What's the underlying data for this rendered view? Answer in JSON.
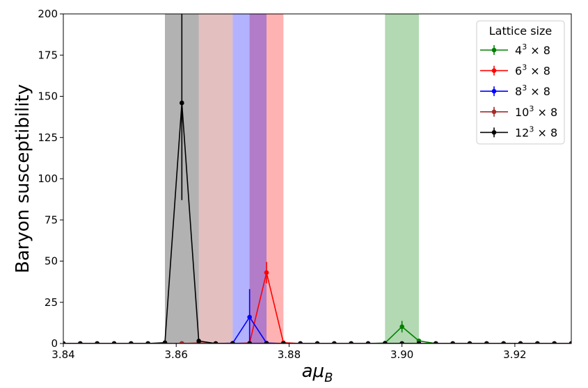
{
  "chart_data": {
    "type": "line",
    "title": "",
    "xlabel": "aμ_B",
    "ylabel": "Baryon susceptibility",
    "xlim": [
      3.84,
      3.93
    ],
    "ylim": [
      0,
      200
    ],
    "x_ticks": [
      3.84,
      3.86,
      3.88,
      3.9,
      3.92
    ],
    "x_tick_labels": [
      "3.84",
      "3.86",
      "3.88",
      "3.90",
      "3.92"
    ],
    "y_ticks": [
      0,
      25,
      50,
      75,
      100,
      125,
      150,
      175,
      200
    ],
    "y_tick_labels": [
      "0",
      "25",
      "50",
      "75",
      "100",
      "125",
      "150",
      "175",
      "200"
    ],
    "grid": false,
    "legend": {
      "title": "Lattice size",
      "placement": "top-right"
    },
    "x": [
      3.84,
      3.843,
      3.846,
      3.849,
      3.852,
      3.855,
      3.858,
      3.861,
      3.864,
      3.867,
      3.87,
      3.873,
      3.876,
      3.879,
      3.882,
      3.885,
      3.888,
      3.891,
      3.894,
      3.897,
      3.9,
      3.903,
      3.906,
      3.909,
      3.912,
      3.915,
      3.918,
      3.921,
      3.924,
      3.927,
      3.93
    ],
    "series": [
      {
        "name": "4³ × 8",
        "base": "4",
        "exp": "3",
        "suffix": " × 8",
        "color": "#008000",
        "values": [
          0,
          0,
          0,
          0,
          0,
          0,
          0,
          0,
          0,
          0,
          0,
          0,
          0,
          0,
          0,
          0,
          0,
          0,
          0,
          0.3,
          10.2,
          1.6,
          0,
          0,
          0,
          0,
          0,
          0,
          0,
          0,
          0
        ],
        "errors": [
          0,
          0,
          0,
          0,
          0,
          0,
          0,
          0,
          0,
          0,
          0,
          0,
          0,
          0,
          0,
          0,
          0,
          0,
          0,
          0,
          3.5,
          0.8,
          0,
          0,
          0,
          0,
          0,
          0,
          0,
          0,
          0
        ],
        "band": [
          3.897,
          3.903
        ]
      },
      {
        "name": "6³ × 8",
        "base": "6",
        "exp": "3",
        "suffix": " × 8",
        "color": "#ff0000",
        "values": [
          0,
          0,
          0,
          0,
          0,
          0,
          0,
          0,
          0,
          0,
          0,
          0.3,
          43.0,
          0.5,
          0,
          0,
          0,
          0,
          0,
          0,
          0,
          0,
          0,
          0,
          0,
          0,
          0,
          0,
          0,
          0,
          0
        ],
        "errors": [
          0,
          0,
          0,
          0,
          0,
          0,
          0,
          0,
          0,
          0,
          0,
          0,
          6.5,
          0,
          0,
          0,
          0,
          0,
          0,
          0,
          0,
          0,
          0,
          0,
          0,
          0,
          0,
          0,
          0,
          0,
          0
        ],
        "band": [
          3.873,
          3.879
        ]
      },
      {
        "name": "8³ × 8",
        "base": "8",
        "exp": "3",
        "suffix": " × 8",
        "color": "#0000ff",
        "values": [
          0,
          0,
          0,
          0,
          0,
          0,
          0,
          0,
          0,
          0,
          0.2,
          16.0,
          0.3,
          0,
          0,
          0,
          0,
          0,
          0,
          0,
          0,
          0,
          0,
          0,
          0,
          0,
          0,
          0,
          0,
          0,
          0
        ],
        "errors": [
          0,
          0,
          0,
          0,
          0,
          0,
          0,
          0,
          0,
          0,
          0,
          17.0,
          0,
          0,
          0,
          0,
          0,
          0,
          0,
          0,
          0,
          0,
          0,
          0,
          0,
          0,
          0,
          0,
          0,
          0,
          0
        ],
        "band": [
          3.87,
          3.876
        ]
      },
      {
        "name": "10³ × 8",
        "base": "10",
        "exp": "3",
        "suffix": " × 8",
        "color": "#a52a2a",
        "values": [
          0,
          0,
          0,
          0,
          0,
          0,
          0,
          0,
          0.3,
          0,
          0,
          0,
          0,
          0,
          0,
          0,
          0,
          0,
          0,
          0,
          0,
          0,
          0,
          0,
          0,
          0,
          0,
          0,
          0,
          0,
          0
        ],
        "errors": [
          0,
          0,
          0,
          0,
          0,
          0,
          0,
          0,
          0,
          0,
          0,
          0,
          0,
          0,
          0,
          0,
          0,
          0,
          0,
          0,
          0,
          0,
          0,
          0,
          0,
          0,
          0,
          0,
          0,
          0,
          0
        ],
        "band": [
          3.864,
          3.87
        ]
      },
      {
        "name": "12³ × 8",
        "base": "12",
        "exp": "3",
        "suffix": " × 8",
        "color": "#000000",
        "values": [
          0,
          0,
          0,
          0,
          0,
          0,
          0.5,
          146.0,
          1.5,
          0,
          0,
          0,
          0,
          0,
          0,
          0,
          0,
          0,
          0,
          0,
          0,
          0,
          0,
          0,
          0,
          0,
          0,
          0,
          0,
          0,
          0
        ],
        "errors": [
          0,
          0,
          0,
          0,
          0,
          0,
          0,
          59.0,
          0.5,
          0,
          0,
          0,
          0,
          0,
          0,
          0,
          0,
          0,
          0,
          0,
          0,
          0,
          0,
          0,
          0,
          0,
          0,
          0,
          0,
          0,
          0
        ],
        "band": [
          3.858,
          3.864
        ]
      }
    ]
  }
}
